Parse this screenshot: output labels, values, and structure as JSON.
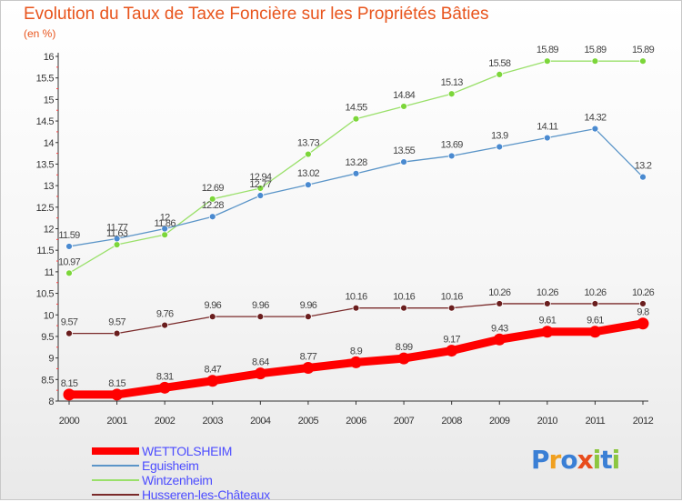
{
  "title": "Evolution du Taux de Taxe Foncière sur les Propriétés Bâties",
  "unit_label": "(en %)",
  "logo": {
    "text": "Proxiti",
    "letters": [
      {
        "char": "P",
        "color": "#3a7fd5"
      },
      {
        "char": "r",
        "color": "#f0a020"
      },
      {
        "char": "o",
        "color": "#3a7fd5"
      },
      {
        "char": "x",
        "color": "#e84c1c"
      },
      {
        "char": "i",
        "color": "#8cc640"
      },
      {
        "char": "t",
        "color": "#3a7fd5"
      },
      {
        "char": "i",
        "color": "#8cc640"
      }
    ]
  },
  "chart_data": {
    "type": "line",
    "title": "Evolution du Taux de Taxe Foncière sur les Propriétés Bâties",
    "ylabel": "(en %)",
    "xlabel": "",
    "x": [
      "2000",
      "2001",
      "2002",
      "2003",
      "2004",
      "2005",
      "2006",
      "2007",
      "2008",
      "2009",
      "2010",
      "2011",
      "2012"
    ],
    "ylim": [
      8,
      16
    ],
    "yticks": [
      "8",
      "8.5",
      "9",
      "9.5",
      "10",
      "10.5",
      "11",
      "11.5",
      "12",
      "12.5",
      "13",
      "13.5",
      "14",
      "14.5",
      "15",
      "15.5",
      "16"
    ],
    "grid": false,
    "legend_position": "bottom-left",
    "series": [
      {
        "name": "WETTOLSHEIM",
        "color": "#ff0000",
        "marker_color": "#ff0000",
        "emphasis": true,
        "values": [
          8.15,
          8.15,
          8.31,
          8.47,
          8.64,
          8.77,
          8.9,
          8.99,
          9.17,
          9.43,
          9.61,
          9.61,
          9.8
        ],
        "labels": [
          "8.15",
          "8.15",
          "8.31",
          "8.47",
          "8.64",
          "8.77",
          "8.9",
          "8.99",
          "9.17",
          "9.43",
          "9.61",
          "9.61",
          "9.8"
        ]
      },
      {
        "name": "Eguisheim",
        "color": "#5b95c8",
        "marker_color": "#4a8ad0",
        "values": [
          11.59,
          11.77,
          12,
          12.28,
          12.77,
          13.02,
          13.28,
          13.55,
          13.69,
          13.9,
          14.11,
          14.32,
          13.2
        ],
        "labels": [
          "11.59",
          "11.77",
          "12",
          "12.28",
          "12.77",
          "13.02",
          "13.28",
          "13.55",
          "13.69",
          "13.9",
          "14.11",
          "14.32",
          "13.2"
        ]
      },
      {
        "name": "Wintzenheim",
        "color": "#9ae06a",
        "marker_color": "#7cd63a",
        "values": [
          10.97,
          11.63,
          11.86,
          12.69,
          12.94,
          13.73,
          14.55,
          14.84,
          15.13,
          15.58,
          15.89,
          15.89,
          15.89
        ],
        "labels": [
          "10.97",
          "11.63",
          "11.86",
          "12.69",
          "12.94",
          "13.73",
          "14.55",
          "14.84",
          "15.13",
          "15.58",
          "15.89",
          "15.89",
          "15.89"
        ]
      },
      {
        "name": "Husseren-les-Châteaux",
        "color": "#7a2a2a",
        "marker_color": "#6a1e1e",
        "values": [
          9.57,
          9.57,
          9.76,
          9.96,
          9.96,
          9.96,
          10.16,
          10.16,
          10.16,
          10.26,
          10.26,
          10.26,
          10.26
        ],
        "labels": [
          "9.57",
          "9.57",
          "9.76",
          "9.96",
          "9.96",
          "9.96",
          "10.16",
          "10.16",
          "10.16",
          "10.26",
          "10.26",
          "10.26",
          "10.26"
        ]
      }
    ]
  }
}
